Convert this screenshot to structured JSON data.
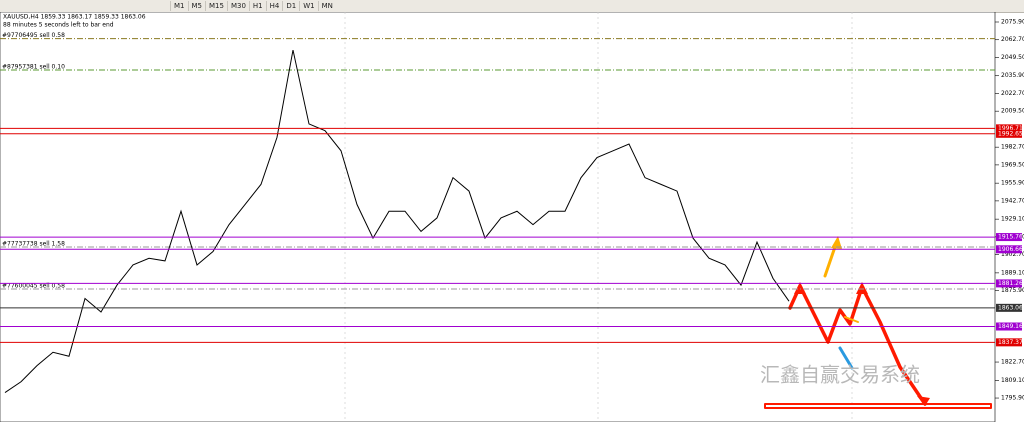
{
  "toolbar": {
    "timeframes": [
      "M1",
      "M5",
      "M15",
      "M30",
      "H1",
      "H4",
      "D1",
      "W1",
      "MN"
    ]
  },
  "header": {
    "symbol_line": "XAUUSD,H4 1859.33 1863.17 1859.33 1863.06",
    "timer": "88 minutes 5 seconds left to bar end"
  },
  "price_axis": [
    {
      "value": 2075.9,
      "label": "2075.90"
    },
    {
      "value": 2062.7,
      "label": "2062.70"
    },
    {
      "value": 2049.5,
      "label": "2049.50"
    },
    {
      "value": 2035.9,
      "label": "2035.90"
    },
    {
      "value": 2022.7,
      "label": "2022.70"
    },
    {
      "value": 2009.5,
      "label": "2009.50"
    },
    {
      "value": 1982.7,
      "label": "1982.70"
    },
    {
      "value": 1969.5,
      "label": "1969.50"
    },
    {
      "value": 1955.9,
      "label": "1955.90"
    },
    {
      "value": 1942.7,
      "label": "1942.70"
    },
    {
      "value": 1929.1,
      "label": "1929.10"
    },
    {
      "value": 1915.9,
      "label": "1915.90"
    },
    {
      "value": 1902.7,
      "label": "1902.70"
    },
    {
      "value": 1889.1,
      "label": "1889.10"
    },
    {
      "value": 1875.9,
      "label": "1875.90"
    },
    {
      "value": 1822.7,
      "label": "1822.70"
    },
    {
      "value": 1809.1,
      "label": "1809.10"
    },
    {
      "value": 1795.9,
      "label": "1795.90"
    }
  ],
  "levels": [
    {
      "price": 1996.71,
      "label": "1996.71",
      "color": "#e00000"
    },
    {
      "price": 1992.65,
      "label": "1992.65",
      "color": "#e00000"
    },
    {
      "price": 1915.76,
      "label": "1915.76",
      "color": "#a000d0"
    },
    {
      "price": 1906.66,
      "label": "1906.66",
      "color": "#a000d0"
    },
    {
      "price": 1881.26,
      "label": "1881.26",
      "color": "#a000d0"
    },
    {
      "price": 1849.16,
      "label": "1849.16",
      "color": "#a000d0"
    },
    {
      "price": 1837.37,
      "label": "1837.37",
      "color": "#e00000"
    },
    {
      "price": 1863.06,
      "label": "1863.06",
      "color": "#333333"
    }
  ],
  "orders": [
    {
      "price": 2063.56,
      "label": "#97706495 sell 0.58",
      "color": "#8a7a20"
    },
    {
      "price": 2040.2,
      "label": "#87957381 sell 0.10",
      "color": "#5a9a30"
    },
    {
      "price": 1908.4,
      "label": "#77737738 sell 1.58",
      "color": "#999999"
    },
    {
      "price": 1877.1,
      "label": "#77600045 sell 0.58",
      "color": "#999999"
    }
  ],
  "price_path": [
    1800,
    1808,
    1820,
    1830,
    1827,
    1870,
    1860,
    1880,
    1895,
    1900,
    1898,
    1935,
    1895,
    1905,
    1925,
    1940,
    1955,
    1990,
    2055,
    2000,
    1995,
    1980,
    1940,
    1915,
    1935,
    1935,
    1920,
    1930,
    1960,
    1950,
    1915,
    1930,
    1935,
    1925,
    1935,
    1935,
    1960,
    1975,
    1980,
    1985,
    1960,
    1955,
    1950,
    1915,
    1900,
    1895,
    1880,
    1912,
    1885,
    1868
  ],
  "watermark": "汇鑫自赢交易系统"
}
